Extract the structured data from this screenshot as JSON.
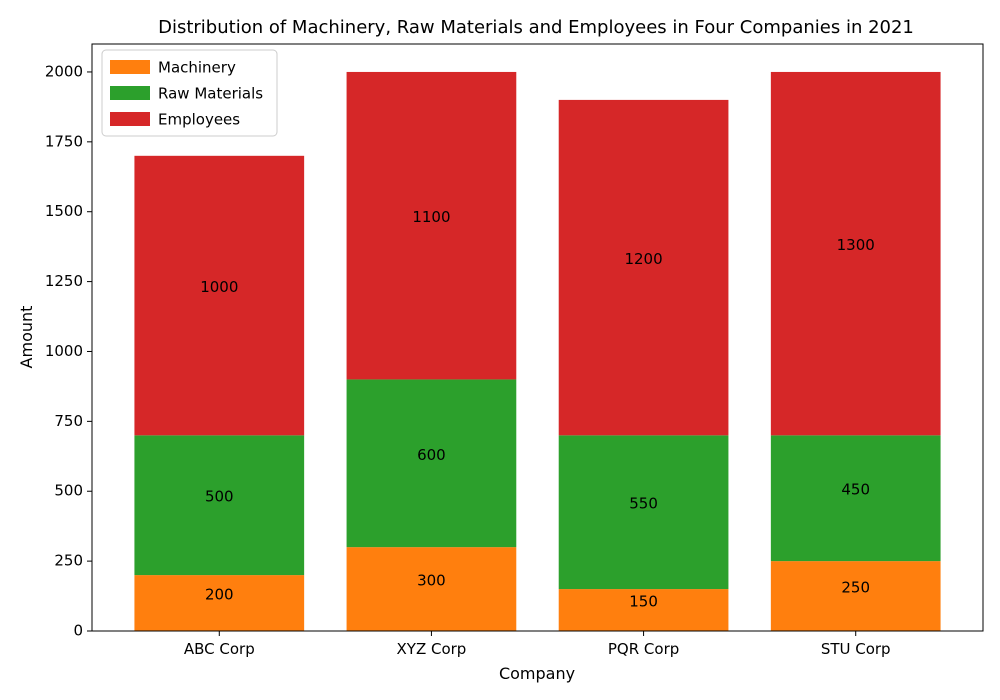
{
  "chart_data": {
    "type": "bar",
    "stacked": true,
    "title": "Distribution of Machinery, Raw Materials and Employees in Four Companies in 2021",
    "xlabel": "Company",
    "ylabel": "Amount",
    "ylim": [
      0,
      2100
    ],
    "yticks": [
      0,
      250,
      500,
      750,
      1000,
      1250,
      1500,
      1750,
      2000
    ],
    "categories": [
      "ABC Corp",
      "XYZ Corp",
      "PQR Corp",
      "STU Corp"
    ],
    "series": [
      {
        "name": "Machinery",
        "color": "#ff7f0e",
        "values": [
          200,
          300,
          150,
          250
        ]
      },
      {
        "name": "Raw Materials",
        "color": "#2ca02c",
        "values": [
          500,
          600,
          550,
          450
        ]
      },
      {
        "name": "Employees",
        "color": "#d62728",
        "values": [
          1000,
          1100,
          1200,
          1300
        ]
      }
    ],
    "legend": "top-left",
    "grid": false
  }
}
